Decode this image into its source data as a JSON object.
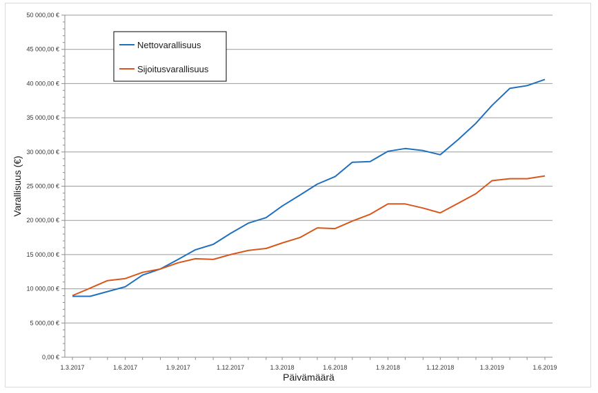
{
  "chart_data": {
    "type": "line",
    "title": "",
    "xlabel": "Päivämäärä",
    "ylabel": "Varallisuus (€)",
    "ylim": [
      0,
      50000
    ],
    "yticks": [
      {
        "value": 0,
        "label": "0,00 €"
      },
      {
        "value": 5000,
        "label": "5 000,00 €"
      },
      {
        "value": 10000,
        "label": "10 000,00 €"
      },
      {
        "value": 15000,
        "label": "15 000,00 €"
      },
      {
        "value": 20000,
        "label": "20 000,00 €"
      },
      {
        "value": 25000,
        "label": "25 000,00 €"
      },
      {
        "value": 30000,
        "label": "30 000,00 €"
      },
      {
        "value": 35000,
        "label": "35 000,00 €"
      },
      {
        "value": 40000,
        "label": "40 000,00 €"
      },
      {
        "value": 45000,
        "label": "45 000,00 €"
      },
      {
        "value": 50000,
        "label": "50 000,00 €"
      }
    ],
    "xticks": [
      "1.3.2017",
      "1.6.2017",
      "1.9.2017",
      "1.12.2017",
      "1.3.2018",
      "1.6.2018",
      "1.9.2018",
      "1.12.2018",
      "1.3.2019",
      "1.6.2019"
    ],
    "x": [
      "1.3.2017",
      "1.4.2017",
      "1.5.2017",
      "1.6.2017",
      "1.7.2017",
      "1.8.2017",
      "1.9.2017",
      "1.10.2017",
      "1.11.2017",
      "1.12.2017",
      "1.1.2018",
      "1.2.2018",
      "1.3.2018",
      "1.4.2018",
      "1.5.2018",
      "1.6.2018",
      "1.7.2018",
      "1.8.2018",
      "1.9.2018",
      "1.10.2018",
      "1.11.2018",
      "1.12.2018",
      "1.1.2019",
      "1.2.2019",
      "1.3.2019",
      "1.4.2019",
      "1.5.2019",
      "1.6.2019"
    ],
    "series": [
      {
        "name": "Nettovarallisuus",
        "color": "#1f6fbf",
        "values": [
          8900,
          8900,
          9600,
          10300,
          12000,
          12900,
          14300,
          15700,
          16500,
          18100,
          19600,
          20400,
          22100,
          23700,
          25300,
          26400,
          28500,
          28600,
          30100,
          30500,
          30200,
          29600,
          31800,
          34200,
          36800,
          39300,
          39700,
          40600
        ]
      },
      {
        "name": "Sijoitusvarallisuus",
        "color": "#d9561a",
        "values": [
          9000,
          10100,
          11200,
          11500,
          12400,
          12900,
          13800,
          14400,
          14300,
          15000,
          15600,
          15900,
          16700,
          17500,
          18900,
          18800,
          19900,
          20900,
          22400,
          22400,
          21800,
          21100,
          22500,
          23900,
          25800,
          26100,
          26100,
          26500
        ]
      }
    ],
    "grid": true,
    "legend_position": "top-left"
  }
}
